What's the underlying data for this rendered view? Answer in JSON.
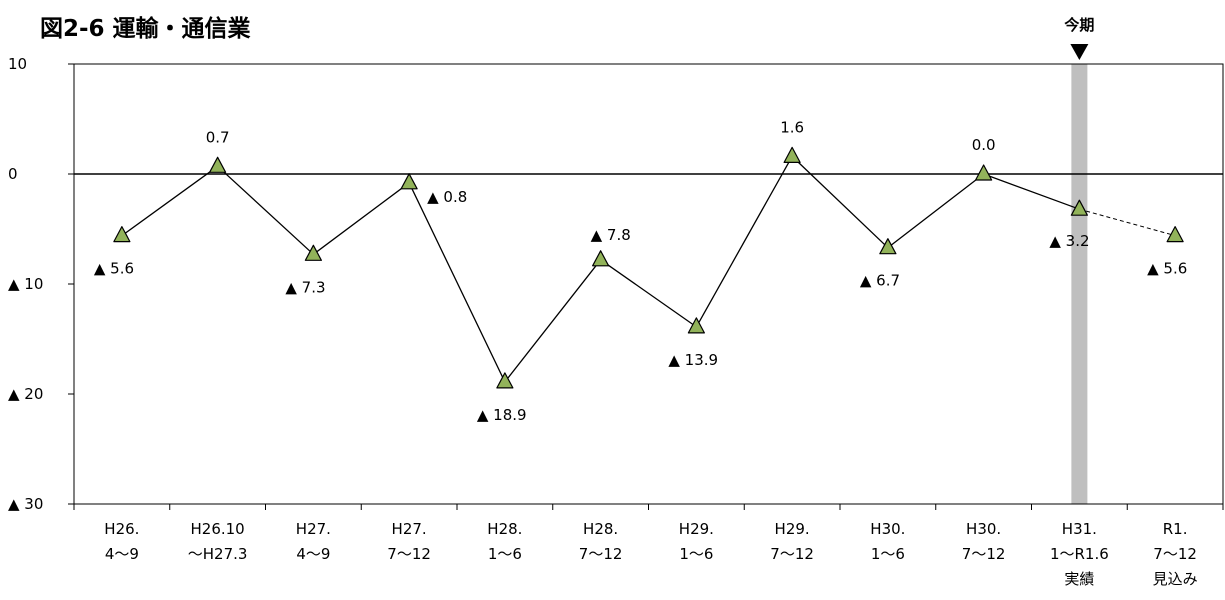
{
  "chart_data": {
    "type": "line",
    "title": "図2-6 運輸・通信業",
    "xlabel": "",
    "ylabel": "",
    "ylim": [
      -30,
      10
    ],
    "y_ticks": [
      10,
      0,
      -10,
      -20,
      -30
    ],
    "y_tick_labels": [
      "10",
      "0",
      "▲ 10",
      "▲ 20",
      "▲ 30"
    ],
    "categories": [
      [
        "H26.",
        "4〜9"
      ],
      [
        "H26.10",
        "〜H27.3"
      ],
      [
        "H27.",
        "4〜9"
      ],
      [
        "H27.",
        "7〜12"
      ],
      [
        "H28.",
        "1〜6"
      ],
      [
        "H28.",
        "7〜12"
      ],
      [
        "H29.",
        "1〜6"
      ],
      [
        "H29.",
        "7〜12"
      ],
      [
        "H30.",
        "1〜6"
      ],
      [
        "H30.",
        "7〜12"
      ],
      [
        "H31.",
        "1〜R1.6",
        "実績"
      ],
      [
        "R1.",
        "7〜12",
        "見込み"
      ]
    ],
    "series": [
      {
        "values": [
          -5.6,
          0.7,
          -7.3,
          -0.8,
          -18.9,
          -7.8,
          -13.9,
          1.6,
          -6.7,
          0.0,
          -3.2,
          -5.6
        ],
        "data_labels": [
          "▲ 5.6",
          "0.7",
          "▲ 7.3",
          "▲ 0.8",
          "▲ 18.9",
          "▲ 7.8",
          "▲ 13.9",
          "1.6",
          "▲ 6.7",
          "0.0",
          "▲ 3.2",
          "▲ 5.6"
        ],
        "forecast_from_index": 10,
        "marker_color": "#92b35a"
      }
    ],
    "highlight": {
      "category_index": 10,
      "label": "今期",
      "color": "#bfbfbf"
    },
    "grid": false,
    "legend": "none"
  }
}
